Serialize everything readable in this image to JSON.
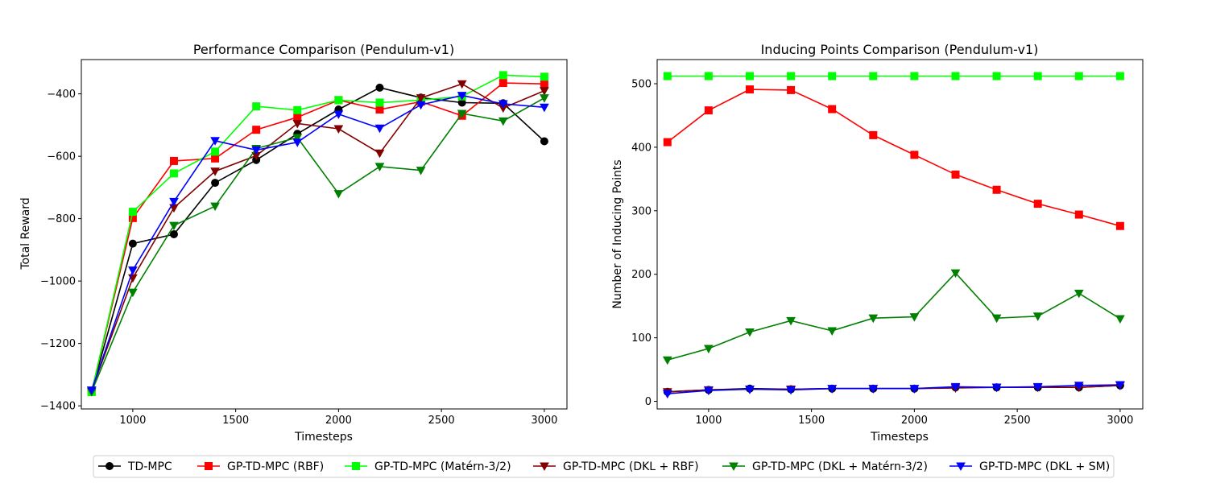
{
  "chart_data": [
    {
      "type": "line",
      "title": "Performance Comparison (Pendulum-v1)",
      "xlabel": "Timesteps",
      "ylabel": "Total Reward",
      "xlim": [
        750,
        3110
      ],
      "ylim": [
        -1410,
        -290
      ],
      "xticks": [
        1000,
        1500,
        2000,
        2500,
        3000
      ],
      "yticks": [
        -1400,
        -1200,
        -1000,
        -800,
        -600,
        -400
      ],
      "ytick_labels": [
        "−1400",
        "−1200",
        "−1000",
        "−800",
        "−600",
        "−400"
      ],
      "grid": false,
      "x": [
        800,
        1000,
        1200,
        1400,
        1600,
        1800,
        2000,
        2200,
        2400,
        2600,
        2800,
        3000
      ],
      "series": [
        {
          "name": "TD-MPC",
          "color": "#000000",
          "marker": "circle",
          "values": [
            -1352,
            -880,
            -850,
            -685,
            -612,
            -528,
            -450,
            -380,
            -412,
            -428,
            -430,
            -552
          ]
        },
        {
          "name": "GP-TD-MPC (RBF)",
          "color": "#ff0000",
          "marker": "square",
          "values": [
            -1354,
            -798,
            -615,
            -607,
            -515,
            -475,
            -420,
            -450,
            -425,
            -470,
            -365,
            -368
          ]
        },
        {
          "name": "GP-TD-MPC (Matérn-3/2)",
          "color": "#00ff00",
          "marker": "square",
          "values": [
            -1356,
            -778,
            -655,
            -585,
            -440,
            -452,
            -420,
            -428,
            -420,
            -408,
            -340,
            -345
          ]
        },
        {
          "name": "GP-TD-MPC (DKL + RBF)",
          "color": "#800000",
          "marker": "triangle-down",
          "values": [
            -1350,
            -990,
            -765,
            -648,
            -598,
            -495,
            -512,
            -590,
            -413,
            -368,
            -445,
            -390
          ]
        },
        {
          "name": "GP-TD-MPC (DKL + Matérn-3/2)",
          "color": "#008000",
          "marker": "triangle-down",
          "values": [
            -1355,
            -1036,
            -822,
            -760,
            -575,
            -540,
            -720,
            -633,
            -645,
            -463,
            -487,
            -413
          ]
        },
        {
          "name": "GP-TD-MPC (DKL + SM)",
          "color": "#0000ff",
          "marker": "triangle-down",
          "values": [
            -1350,
            -965,
            -745,
            -550,
            -580,
            -555,
            -465,
            -510,
            -435,
            -405,
            -432,
            -443
          ]
        }
      ]
    },
    {
      "type": "line",
      "title": "Inducing Points Comparison (Pendulum-v1)",
      "xlabel": "Timesteps",
      "ylabel": "Number of Inducing Points",
      "xlim": [
        750,
        3110
      ],
      "ylim": [
        -12,
        538
      ],
      "xticks": [
        1000,
        1500,
        2000,
        2500,
        3000
      ],
      "yticks": [
        0,
        100,
        200,
        300,
        400,
        500
      ],
      "ytick_labels": [
        "0",
        "100",
        "200",
        "300",
        "400",
        "500"
      ],
      "grid": false,
      "x": [
        800,
        1000,
        1200,
        1400,
        1600,
        1800,
        2000,
        2200,
        2400,
        2600,
        2800,
        3000
      ],
      "series": [
        {
          "name": "GP-TD-MPC (Matérn-3/2)",
          "color": "#00ff00",
          "marker": "square",
          "values": [
            512,
            512,
            512,
            512,
            512,
            512,
            512,
            512,
            512,
            512,
            512,
            512
          ]
        },
        {
          "name": "GP-TD-MPC (RBF)",
          "color": "#ff0000",
          "marker": "square",
          "values": [
            408,
            458,
            491,
            490,
            460,
            419,
            388,
            357,
            333,
            311,
            294,
            276
          ]
        },
        {
          "name": "GP-TD-MPC (DKL + Matérn-3/2)",
          "color": "#008000",
          "marker": "triangle-down",
          "values": [
            65,
            83,
            109,
            127,
            111,
            131,
            133,
            202,
            131,
            134,
            170,
            130
          ]
        },
        {
          "name": "TD-MPC",
          "color": "#000000",
          "marker": "circle",
          "values": [
            15,
            18,
            20,
            19,
            20,
            20,
            20,
            22,
            22,
            22,
            22,
            25
          ]
        },
        {
          "name": "GP-TD-MPC (DKL + RBF)",
          "color": "#800000",
          "marker": "triangle-down",
          "values": [
            15,
            18,
            19,
            19,
            20,
            20,
            20,
            21,
            22,
            22,
            22,
            25
          ]
        },
        {
          "name": "GP-TD-MPC (DKL + SM)",
          "color": "#0000ff",
          "marker": "triangle-down",
          "values": [
            12,
            17,
            19,
            18,
            20,
            20,
            20,
            23,
            22,
            23,
            25,
            26
          ]
        }
      ]
    }
  ],
  "legend": {
    "placement": "bottom-center",
    "entries": [
      {
        "name": "TD-MPC",
        "color": "#000000",
        "marker": "circle"
      },
      {
        "name": "GP-TD-MPC (RBF)",
        "color": "#ff0000",
        "marker": "square"
      },
      {
        "name": "GP-TD-MPC (Matérn-3/2)",
        "color": "#00ff00",
        "marker": "square"
      },
      {
        "name": "GP-TD-MPC (DKL + RBF)",
        "color": "#800000",
        "marker": "triangle-down"
      },
      {
        "name": "GP-TD-MPC (DKL + Matérn-3/2)",
        "color": "#008000",
        "marker": "triangle-down"
      },
      {
        "name": "GP-TD-MPC (DKL + SM)",
        "color": "#0000ff",
        "marker": "triangle-down"
      }
    ]
  }
}
